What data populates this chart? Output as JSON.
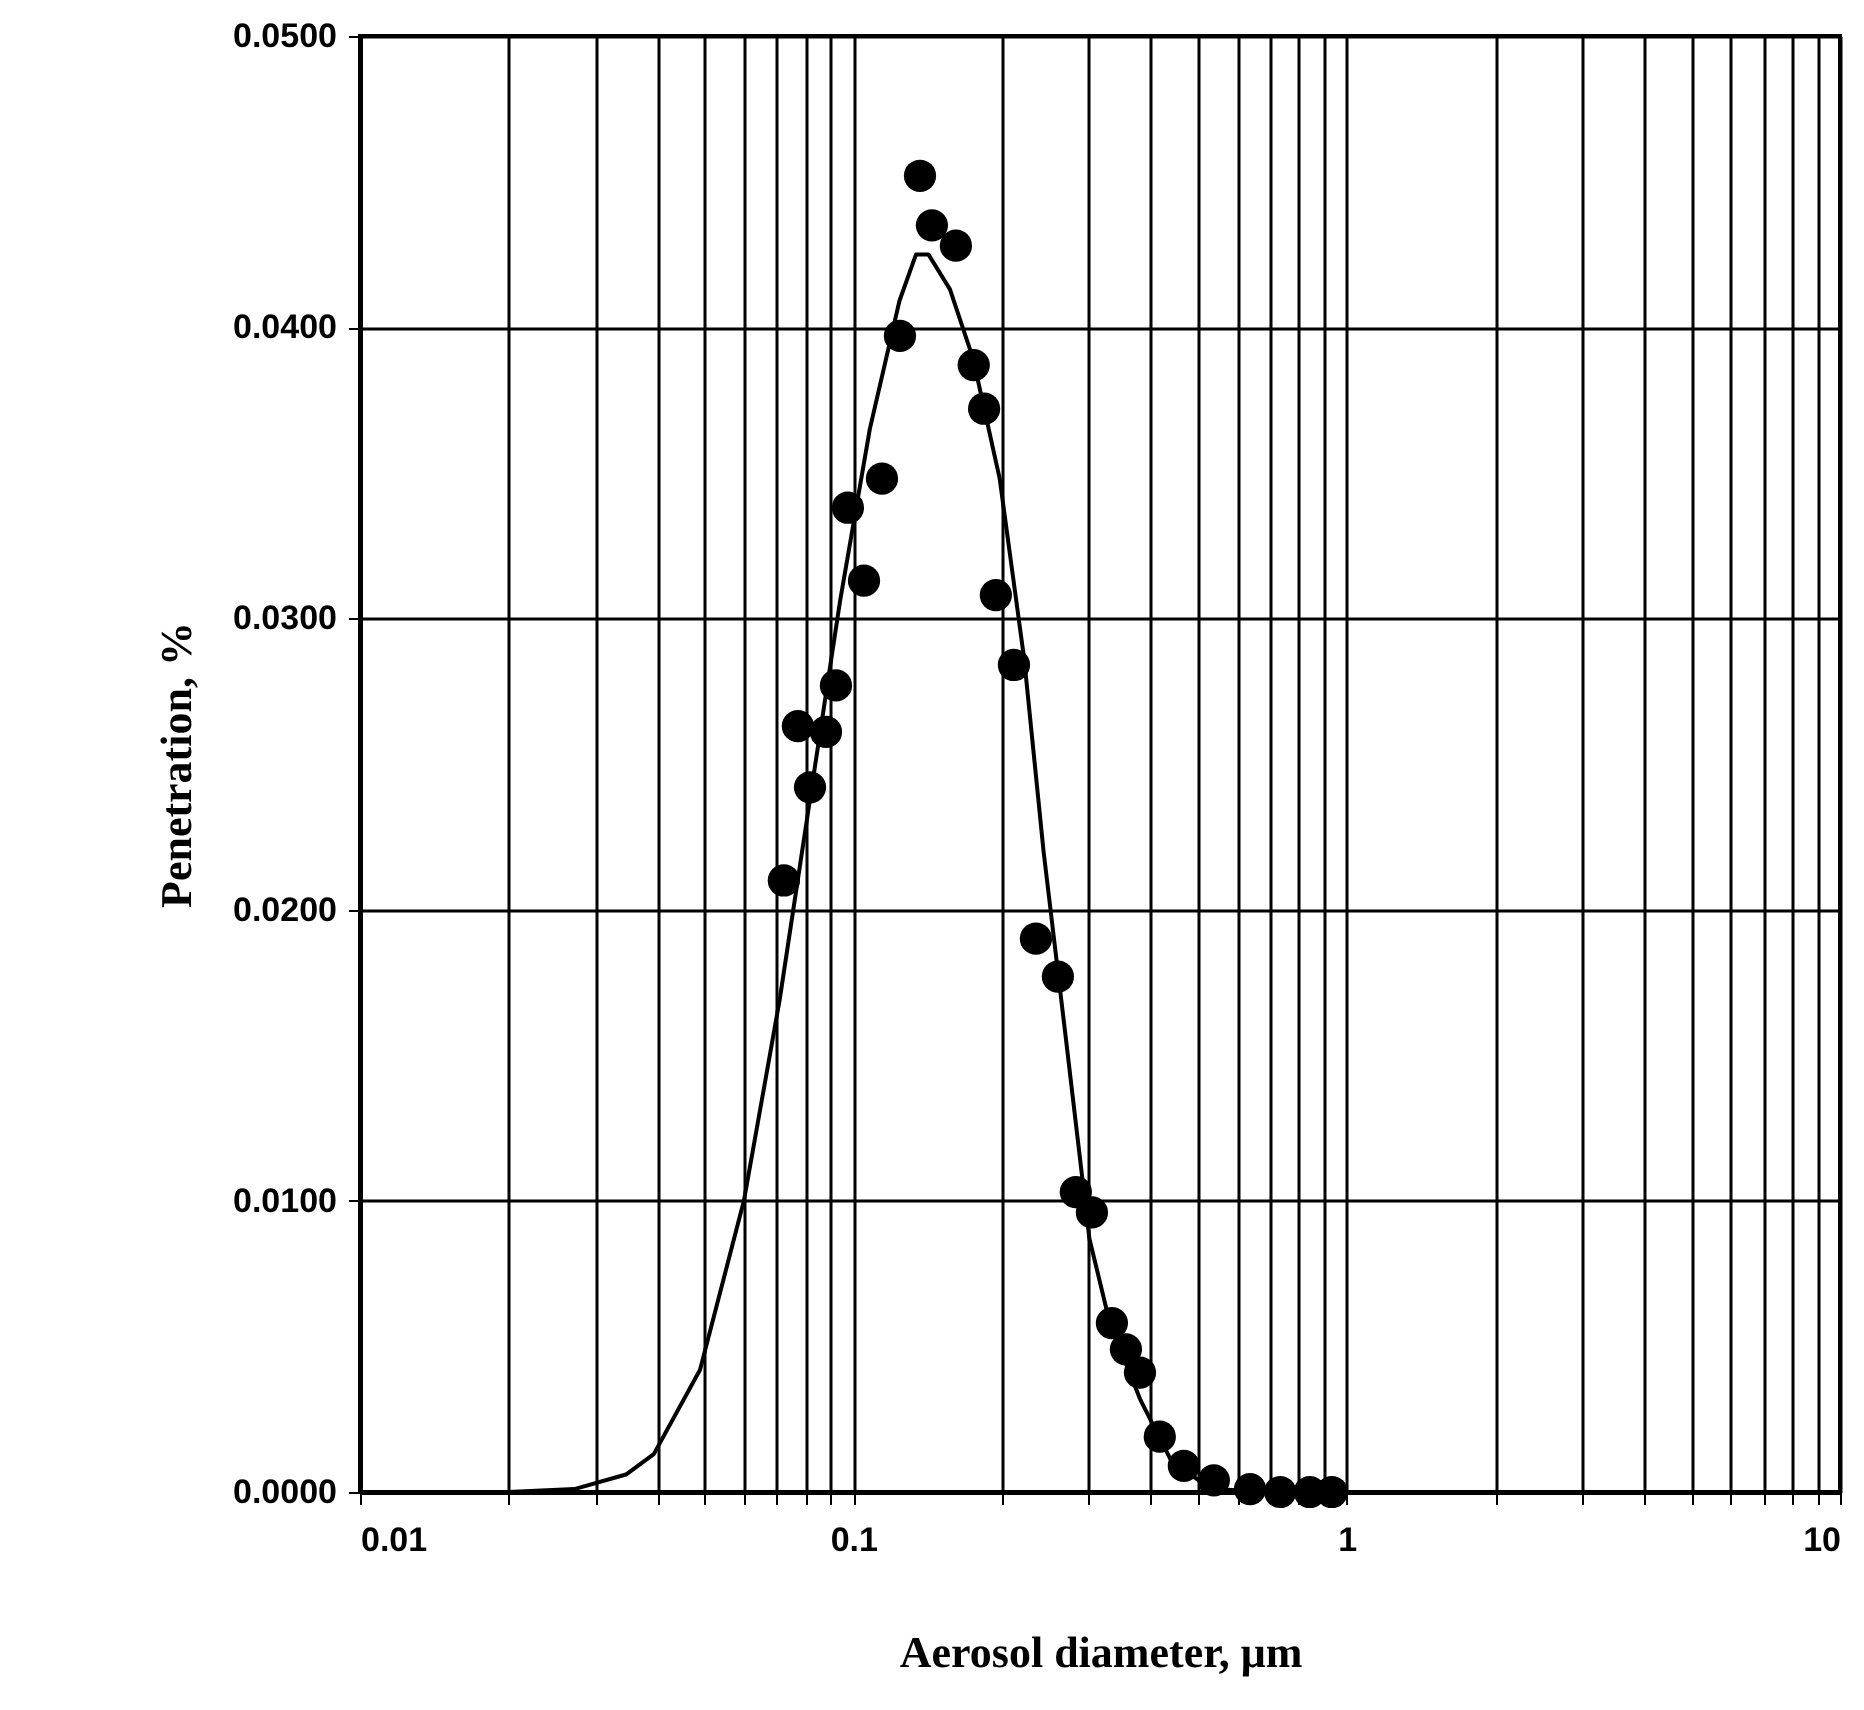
{
  "chart_data": {
    "type": "scatter",
    "xlabel": "Aerosol diameter, μm",
    "ylabel": "Penetration, %",
    "log": "x",
    "grid": true,
    "xlim": [
      0.01,
      10
    ],
    "ylim": [
      0,
      0.05
    ],
    "xticks": [
      0.01,
      {
        "value": 0.02,
        "label": null
      },
      {
        "value": 0.03,
        "label": null
      },
      {
        "value": 0.04,
        "label": null
      },
      {
        "value": 0.05,
        "label": null
      },
      {
        "value": 0.06,
        "label": null
      },
      {
        "value": 0.07,
        "label": null
      },
      {
        "value": 0.08,
        "label": null
      },
      {
        "value": 0.09,
        "label": null
      },
      0.1,
      {
        "value": 0.2,
        "label": null
      },
      {
        "value": 0.3,
        "label": null
      },
      {
        "value": 0.4,
        "label": null
      },
      {
        "value": 0.5,
        "label": null
      },
      {
        "value": 0.6,
        "label": null
      },
      {
        "value": 0.7,
        "label": null
      },
      {
        "value": 0.8,
        "label": null
      },
      {
        "value": 0.9,
        "label": null
      },
      1,
      {
        "value": 2,
        "label": null
      },
      {
        "value": 3,
        "label": null
      },
      {
        "value": 4,
        "label": null
      },
      {
        "value": 5,
        "label": null
      },
      {
        "value": 6,
        "label": null
      },
      {
        "value": 7,
        "label": null
      },
      {
        "value": 8,
        "label": null
      },
      {
        "value": 9,
        "label": null
      },
      10
    ],
    "yticks": [
      {
        "value": 0,
        "label": "0.0000"
      },
      {
        "value": 0.01,
        "label": "0.0100"
      },
      {
        "value": 0.02,
        "label": "0.0200"
      },
      {
        "value": 0.03,
        "label": "0.0300"
      },
      {
        "value": 0.04,
        "label": "0.0400"
      },
      {
        "value": 0.05,
        "label": "0.0500"
      }
    ],
    "series": [
      {
        "type": "line",
        "marker": "none",
        "color": "#000000",
        "x": [
          0.01,
          0.02,
          0.0272,
          0.0346,
          0.0394,
          0.0489,
          0.06,
          0.0709,
          0.0817,
          0.094,
          0.108,
          0.124,
          0.134,
          0.142,
          0.157,
          0.175,
          0.198,
          0.222,
          0.243,
          0.27,
          0.301,
          0.33,
          0.381,
          0.44,
          0.53,
          0.73,
          1.0
        ],
        "values": [
          0,
          0,
          0.0001,
          0.0006,
          0.0013,
          0.0042,
          0.01,
          0.0169,
          0.0238,
          0.0306,
          0.0365,
          0.0409,
          0.0425,
          0.0425,
          0.0413,
          0.0389,
          0.0348,
          0.0286,
          0.022,
          0.0155,
          0.0087,
          0.0059,
          0.0032,
          0.0011,
          0.0001,
          0,
          0
        ]
      },
      {
        "type": "scatter",
        "marker": "circle",
        "color": "#000000",
        "x": [
          0.0723,
          0.0772,
          0.0817,
          0.088,
          0.0922,
          0.0975,
          0.1051,
          0.1143,
          0.1243,
          0.1365,
          0.1443,
          0.1614,
          0.1754,
          0.1841,
          0.1945,
          0.2116,
          0.2345,
          0.2598,
          0.2825,
          0.3045,
          0.3343,
          0.3569,
          0.3811,
          0.418,
          0.4677,
          0.538,
          0.637,
          0.733,
          0.842,
          0.933
        ],
        "values": [
          0.021,
          0.0263,
          0.0242,
          0.0261,
          0.0277,
          0.0338,
          0.0313,
          0.0348,
          0.0397,
          0.0452,
          0.0435,
          0.0428,
          0.0387,
          0.0372,
          0.0308,
          0.0284,
          0.019,
          0.0177,
          0.0103,
          0.0096,
          0.0058,
          0.0049,
          0.0041,
          0.0019,
          0.0009,
          0.0004,
          0.0001,
          0,
          0,
          0
        ]
      }
    ]
  }
}
